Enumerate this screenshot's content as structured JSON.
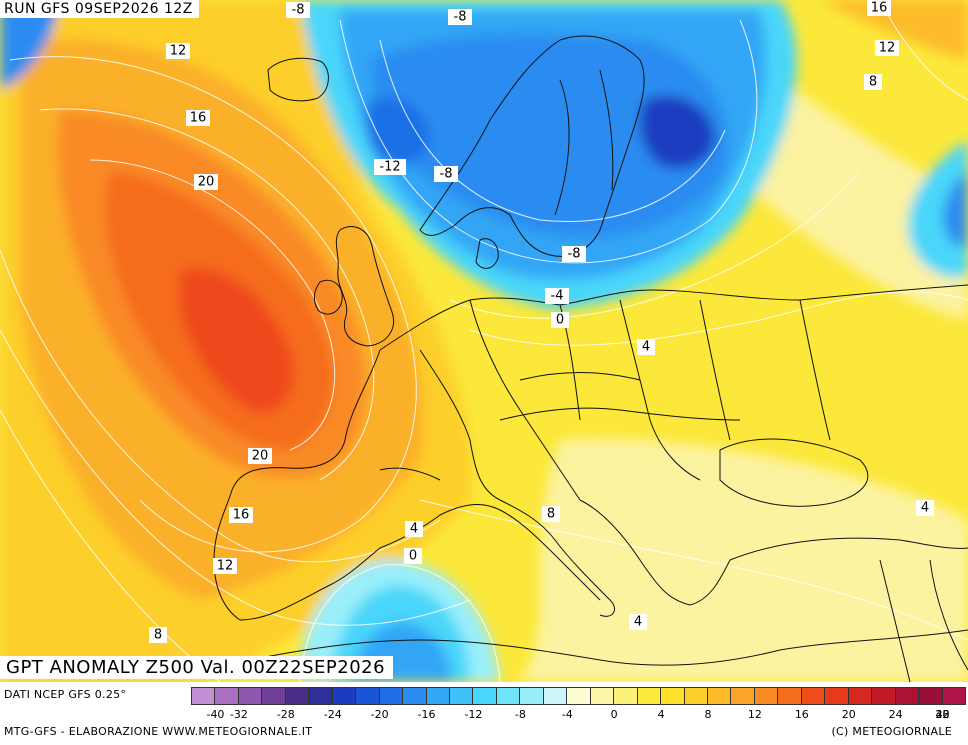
{
  "header": {
    "run_label": "RUN GFS 09SEP2026 12Z"
  },
  "title": {
    "text": "GPT ANOMALY Z500 Val. 00Z22SEP2026"
  },
  "footer": {
    "source": "DATI NCEP GFS 0.25°",
    "credit_left": "MTG-GFS - ELABORAZIONE WWW.METEOGIORNALE.IT",
    "credit_right": "(C) METEOGIORNALE"
  },
  "colorbar": {
    "colors": [
      "#c58fd6",
      "#a86fc2",
      "#8f57ae",
      "#6f3f98",
      "#4a2f8a",
      "#2f2f9a",
      "#1c3cc0",
      "#1a55d8",
      "#1f6fe6",
      "#2a8cf0",
      "#33a6f5",
      "#3ec0f8",
      "#4ad6fa",
      "#6ee4fa",
      "#9aeefa",
      "#cdf6fb",
      "#fdfcd2",
      "#fcf7a8",
      "#fcf27a",
      "#fbeb3c",
      "#fde02a",
      "#fdcf2a",
      "#fdbb2a",
      "#fca52a",
      "#fa8a24",
      "#f56c1e",
      "#ef4e1a",
      "#e63a1a",
      "#d6281e",
      "#c41a28",
      "#ae1232",
      "#9a0e3a",
      "#b0124a"
    ],
    "tick_labels": [
      "-40",
      "-32",
      "-28",
      "-24",
      "-20",
      "-16",
      "-12",
      "-8",
      "-4",
      "0",
      "4",
      "8",
      "12",
      "16",
      "20",
      "24",
      "28",
      "32",
      "40"
    ]
  },
  "map_labels": [
    {
      "text": "-8"
    },
    {
      "text": "-8"
    },
    {
      "text": "16"
    },
    {
      "text": "12"
    },
    {
      "text": "12"
    },
    {
      "text": "8"
    },
    {
      "text": "16"
    },
    {
      "text": "-12"
    },
    {
      "text": "-8"
    },
    {
      "text": "20"
    },
    {
      "text": "-8"
    },
    {
      "text": "-4"
    },
    {
      "text": "0"
    },
    {
      "text": "4"
    },
    {
      "text": "20"
    },
    {
      "text": "16"
    },
    {
      "text": "8"
    },
    {
      "text": "4"
    },
    {
      "text": "0"
    },
    {
      "text": "4"
    },
    {
      "text": "12"
    },
    {
      "text": "8"
    },
    {
      "text": "4"
    }
  ]
}
